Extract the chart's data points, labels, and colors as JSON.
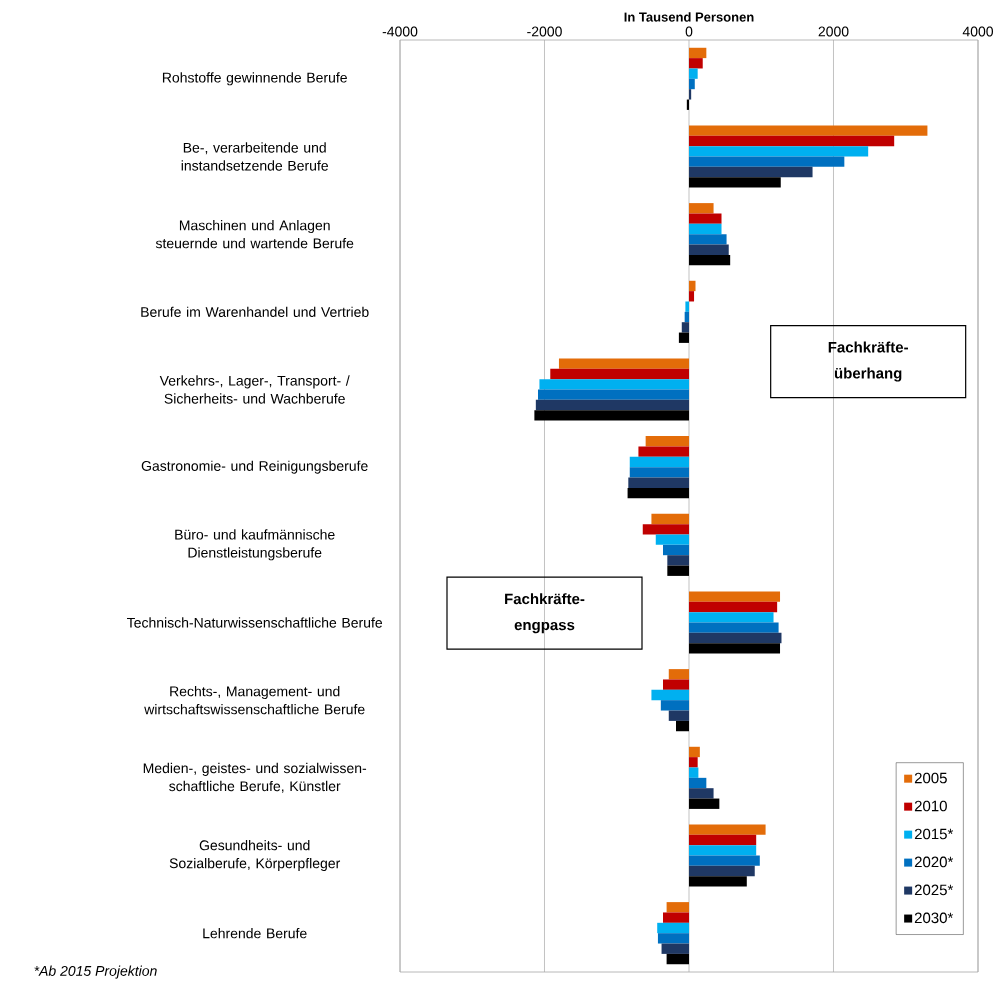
{
  "chart_data": {
    "type": "bar",
    "orientation": "horizontal",
    "xlabel": "In Tausend Personen",
    "categories": [
      "Rohstoffe gewinnende Berufe",
      "Be-, verarbeitende und instandsetzende Berufe",
      "Maschinen und Anlagen steuernde und wartende Berufe",
      "Berufe im Warenhandel und Vertrieb",
      "Verkehrs-, Lager-, Transport- / Sicherheits- und Wachberufe",
      "Gastronomie- und Reinigungsberufe",
      "Büro- und kaufmännische Dienstleistungsberufe",
      "Technisch-Naturwissenschaftliche Berufe",
      "Rechts-, Management- und wirtschaftswissenschaftliche Berufe",
      "Medien-, geistes- und sozialwissen-schaftliche Berufe, Künstler",
      "Gesundheits- und Sozialberufe, Körperpfleger",
      "Lehrende Berufe"
    ],
    "series": [
      {
        "name": "2005",
        "color": "#e36c09",
        "values": [
          240,
          3300,
          340,
          90,
          -1800,
          -600,
          -520,
          1260,
          -280,
          150,
          1060,
          -310
        ]
      },
      {
        "name": "2010",
        "color": "#c00000",
        "values": [
          190,
          2840,
          450,
          70,
          -1920,
          -700,
          -640,
          1220,
          -360,
          120,
          930,
          -360
        ]
      },
      {
        "name": "2015*",
        "color": "#00b0f0",
        "values": [
          120,
          2480,
          450,
          -50,
          -2070,
          -820,
          -460,
          1170,
          -520,
          130,
          930,
          -440
        ]
      },
      {
        "name": "2020*",
        "color": "#0070c0",
        "values": [
          80,
          2150,
          520,
          -60,
          -2090,
          -820,
          -360,
          1240,
          -390,
          240,
          980,
          -430
        ]
      },
      {
        "name": "2025*",
        "color": "#1f3864",
        "values": [
          30,
          1710,
          550,
          -100,
          -2120,
          -840,
          -300,
          1280,
          -280,
          340,
          910,
          -380
        ]
      },
      {
        "name": "2030*",
        "color": "#000000",
        "values": [
          -30,
          1270,
          570,
          -140,
          -2140,
          -850,
          -300,
          1260,
          -180,
          420,
          800,
          -310
        ]
      }
    ],
    "xlim": [
      -4000,
      4000
    ],
    "xticks": [
      -4000,
      -2000,
      0,
      2000,
      4000
    ],
    "grid": "x",
    "legend": "bottom right",
    "annotations": [
      "Fachkräfte-überhang",
      "Fachkräfte-engpass",
      "*Ab 2015 Projektion"
    ]
  }
}
